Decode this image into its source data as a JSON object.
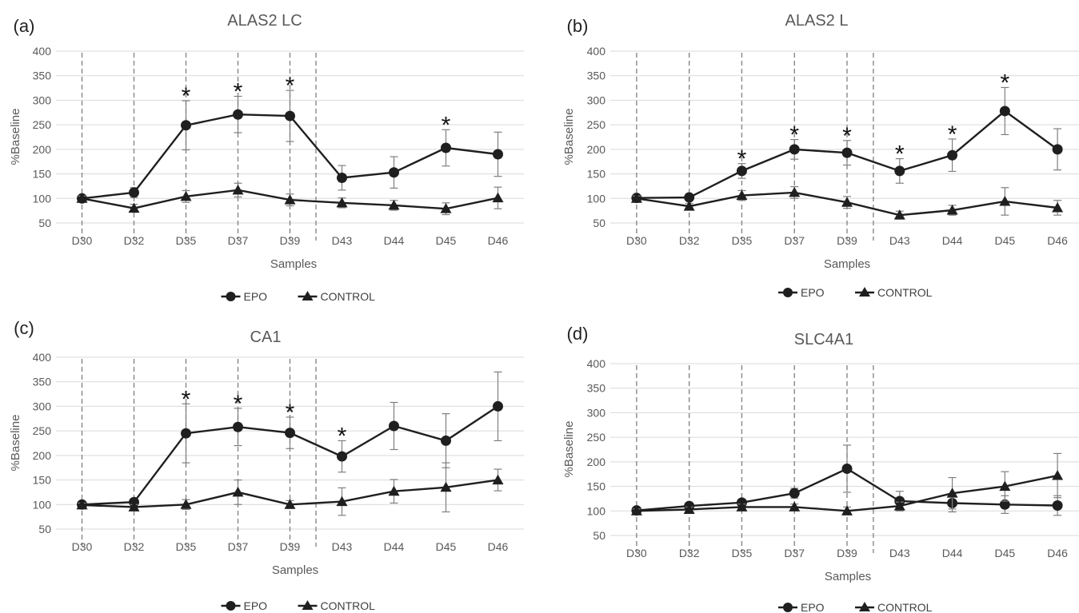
{
  "figure": {
    "colors": {
      "series": "#1f1f1f",
      "grid": "#d9d9d9",
      "guide": "#7f7f7f",
      "errorbar": "#7f7f7f",
      "text": "#595959"
    },
    "legend": {
      "epo": "EPO",
      "control": "CONTROL"
    }
  },
  "chart_data": [
    {
      "panel": "(a)",
      "type": "line",
      "title": "ALAS2 LC",
      "xlabel": "Samples",
      "ylabel": "%Baseline",
      "ylim": [
        50,
        400
      ],
      "yticks": [
        50,
        100,
        150,
        200,
        250,
        300,
        350,
        400
      ],
      "grid": true,
      "legend_position": "bottom",
      "categories": [
        "D30",
        "D32",
        "D35",
        "D37",
        "D39",
        "D43",
        "D44",
        "D45",
        "D46"
      ],
      "guide_lines_after": [
        "D30",
        "D32",
        "D35",
        "D37",
        "D39",
        "D39-D43"
      ],
      "series": [
        {
          "name": "EPO",
          "marker": "circle",
          "values": [
            100,
            112,
            249,
            271,
            268,
            142,
            153,
            203,
            190
          ],
          "errors": [
            5,
            10,
            50,
            37,
            52,
            25,
            32,
            37,
            45
          ]
        },
        {
          "name": "CONTROL",
          "marker": "triangle",
          "values": [
            100,
            80,
            104,
            117,
            97,
            91,
            86,
            79,
            101
          ],
          "errors": [
            5,
            8,
            12,
            14,
            12,
            10,
            10,
            12,
            22
          ]
        }
      ],
      "significant": [
        "D35",
        "D37",
        "D39",
        "D45"
      ],
      "annotation_symbol": "*"
    },
    {
      "panel": "(b)",
      "type": "line",
      "title": "ALAS2 L",
      "xlabel": "Samples",
      "ylabel": "%Baseline",
      "ylim": [
        50,
        400
      ],
      "yticks": [
        50,
        100,
        150,
        200,
        250,
        300,
        350,
        400
      ],
      "grid": true,
      "legend_position": "bottom",
      "categories": [
        "D30",
        "D32",
        "D35",
        "D37",
        "D39",
        "D43",
        "D44",
        "D45",
        "D46"
      ],
      "guide_lines_after": [
        "D30",
        "D32",
        "D35",
        "D37",
        "D39",
        "D39-D43"
      ],
      "series": [
        {
          "name": "EPO",
          "marker": "circle",
          "values": [
            101,
            102,
            156,
            200,
            193,
            156,
            188,
            278,
            200
          ],
          "errors": [
            5,
            5,
            15,
            20,
            25,
            25,
            33,
            48,
            42
          ]
        },
        {
          "name": "CONTROL",
          "marker": "triangle",
          "values": [
            100,
            84,
            106,
            112,
            92,
            66,
            76,
            94,
            81
          ],
          "errors": [
            5,
            6,
            10,
            12,
            12,
            8,
            10,
            28,
            15
          ]
        }
      ],
      "significant": [
        "D35",
        "D37",
        "D39",
        "D43",
        "D44",
        "D45"
      ],
      "annotation_symbol": "*"
    },
    {
      "panel": "(c)",
      "type": "line",
      "title": "CA1",
      "xlabel": "Samples",
      "ylabel": "%Baseline",
      "ylim": [
        50,
        400
      ],
      "yticks": [
        50,
        100,
        150,
        200,
        250,
        300,
        350,
        400
      ],
      "grid": true,
      "legend_position": "bottom",
      "categories": [
        "D30",
        "D32",
        "D35",
        "D37",
        "D39",
        "D43",
        "D44",
        "D45",
        "D46"
      ],
      "guide_lines_after": [
        "D30",
        "D32",
        "D35",
        "D37",
        "D39",
        "D39-D43"
      ],
      "series": [
        {
          "name": "EPO",
          "marker": "circle",
          "values": [
            100,
            105,
            245,
            258,
            246,
            198,
            260,
            230,
            300
          ],
          "errors": [
            4,
            5,
            60,
            38,
            32,
            32,
            48,
            55,
            70
          ]
        },
        {
          "name": "CONTROL",
          "marker": "triangle",
          "values": [
            99,
            95,
            100,
            125,
            100,
            106,
            127,
            135,
            150
          ],
          "errors": [
            4,
            5,
            10,
            25,
            8,
            28,
            24,
            50,
            22
          ]
        }
      ],
      "significant": [
        "D35",
        "D37",
        "D39",
        "D43"
      ],
      "annotation_symbol": "*"
    },
    {
      "panel": "(d)",
      "type": "line",
      "title": "SLC4A1",
      "xlabel": "Samples",
      "ylabel": "%Baseline",
      "ylim": [
        50,
        400
      ],
      "yticks": [
        50,
        100,
        150,
        200,
        250,
        300,
        350,
        400
      ],
      "grid": true,
      "legend_position": "bottom",
      "categories": [
        "D30",
        "D32",
        "D35",
        "D37",
        "D39",
        "D43",
        "D44",
        "D45",
        "D46"
      ],
      "guide_lines_after": [
        "D30",
        "D32",
        "D35",
        "D37",
        "D39",
        "D39-D43"
      ],
      "series": [
        {
          "name": "EPO",
          "marker": "circle",
          "values": [
            101,
            110,
            117,
            136,
            186,
            120,
            116,
            113,
            111
          ],
          "errors": [
            4,
            5,
            6,
            10,
            48,
            20,
            18,
            18,
            20
          ]
        },
        {
          "name": "CONTROL",
          "marker": "triangle",
          "values": [
            100,
            103,
            108,
            108,
            100,
            110,
            136,
            150,
            172
          ],
          "errors": [
            4,
            5,
            6,
            6,
            8,
            8,
            32,
            30,
            45
          ]
        }
      ],
      "significant": [],
      "annotation_symbol": "*"
    }
  ]
}
